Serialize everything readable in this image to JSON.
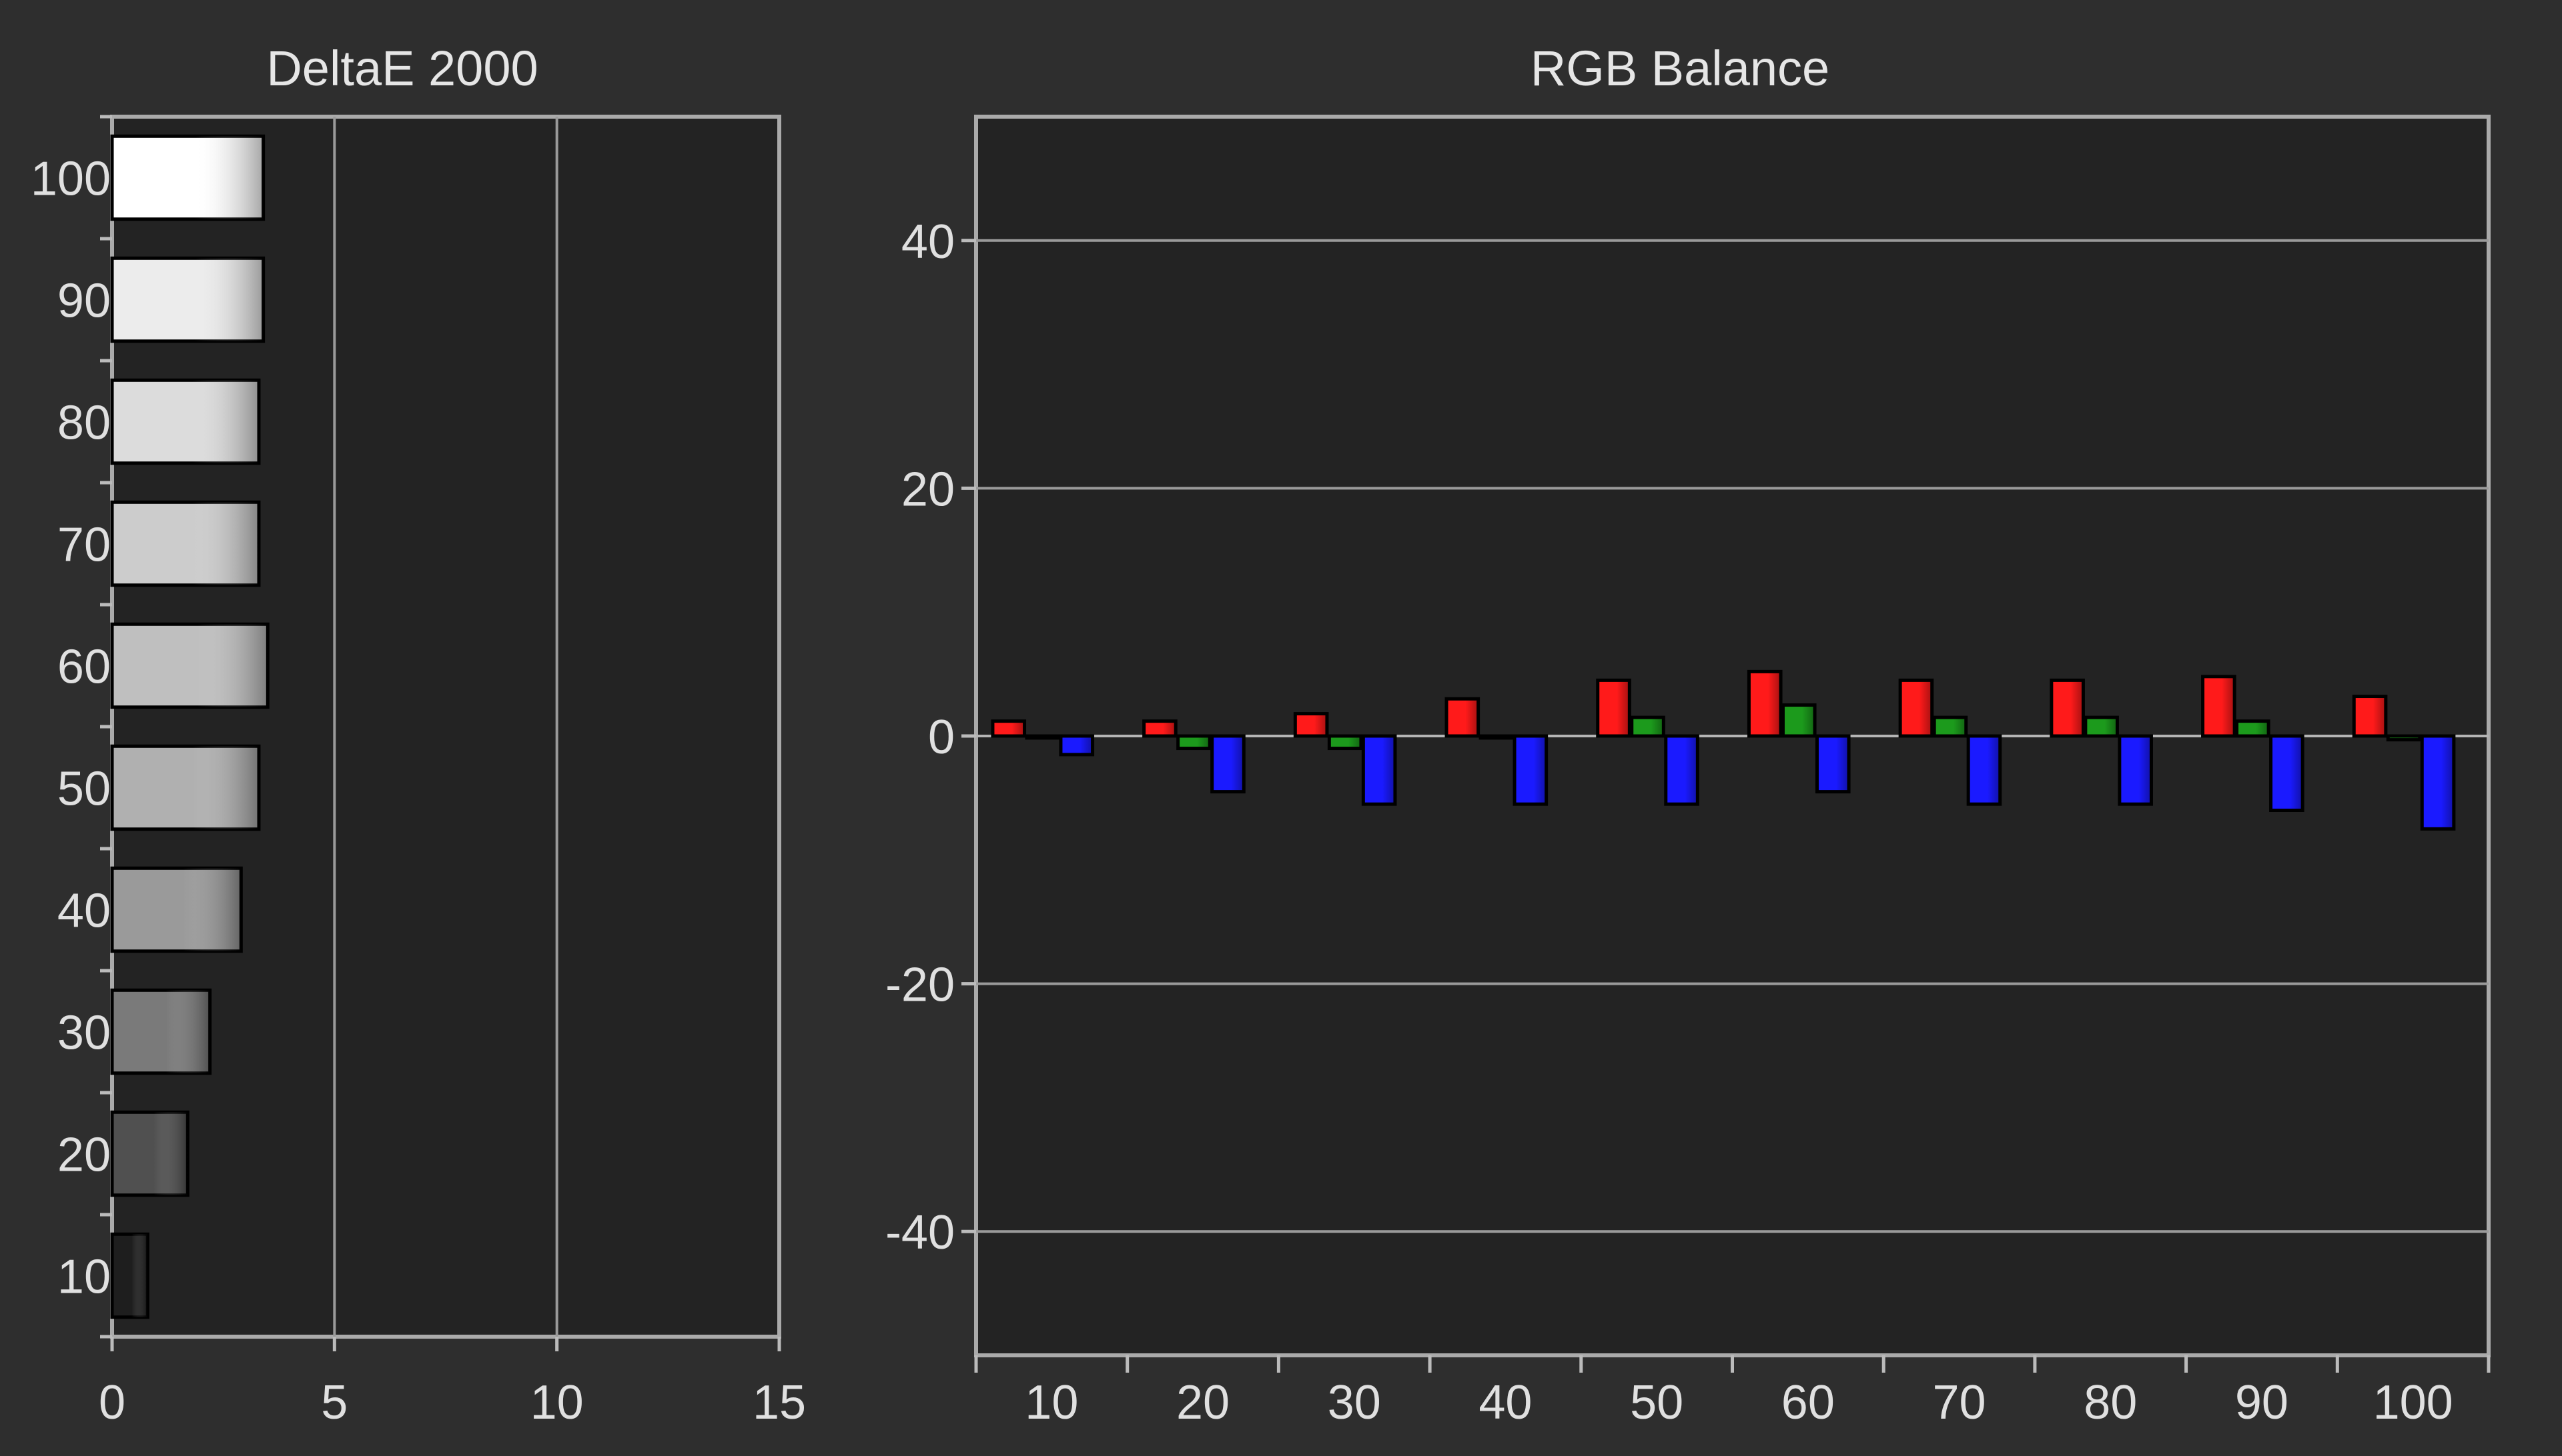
{
  "chart_data": [
    {
      "type": "bar",
      "orientation": "horizontal",
      "title": "DeltaE 2000",
      "xlabel": "",
      "ylabel": "",
      "categories": [
        "10",
        "20",
        "30",
        "40",
        "50",
        "60",
        "70",
        "80",
        "90",
        "100"
      ],
      "values": [
        0.8,
        1.7,
        2.2,
        2.9,
        3.3,
        3.5,
        3.3,
        3.3,
        3.4,
        3.4
      ],
      "xlim": [
        0,
        15
      ],
      "xticks": [
        "0",
        "5",
        "10",
        "15"
      ],
      "grid": true,
      "colors": {
        "bar_gradient": [
          "#1e1e1e",
          "#505050",
          "#7a7a7a",
          "#9a9a9a",
          "#b0b0b0",
          "#bfbfbf",
          "#cccccc",
          "#dcdcdc",
          "#ececec",
          "#ffffff"
        ],
        "background": "#232323",
        "grid": "#9a9a9a"
      }
    },
    {
      "type": "bar",
      "title": "RGB Balance",
      "xlabel": "",
      "ylabel": "",
      "categories": [
        "10",
        "20",
        "30",
        "40",
        "50",
        "60",
        "70",
        "80",
        "90",
        "100"
      ],
      "series": [
        {
          "values": [
            1.2,
            1.2,
            1.8,
            3.0,
            4.5,
            5.2,
            4.5,
            4.5,
            4.8,
            3.2
          ]
        },
        {
          "values": [
            0,
            -1,
            -1,
            0,
            1.5,
            2.5,
            1.5,
            1.5,
            1.2,
            -0.3
          ]
        },
        {
          "values": [
            -1.5,
            -4.5,
            -5.5,
            -5.5,
            -5.5,
            -4.5,
            -5.5,
            -5.5,
            -6,
            -7.5
          ]
        }
      ],
      "ylim": [
        -50,
        50
      ],
      "yticks": [
        "40",
        "20",
        "0",
        "-20",
        "-40"
      ],
      "grid": true,
      "colors": {
        "series": [
          "#ff1a1a",
          "#1c9a1c",
          "#1a1aff"
        ],
        "background": "#232323",
        "grid": "#9a9a9a"
      }
    }
  ]
}
